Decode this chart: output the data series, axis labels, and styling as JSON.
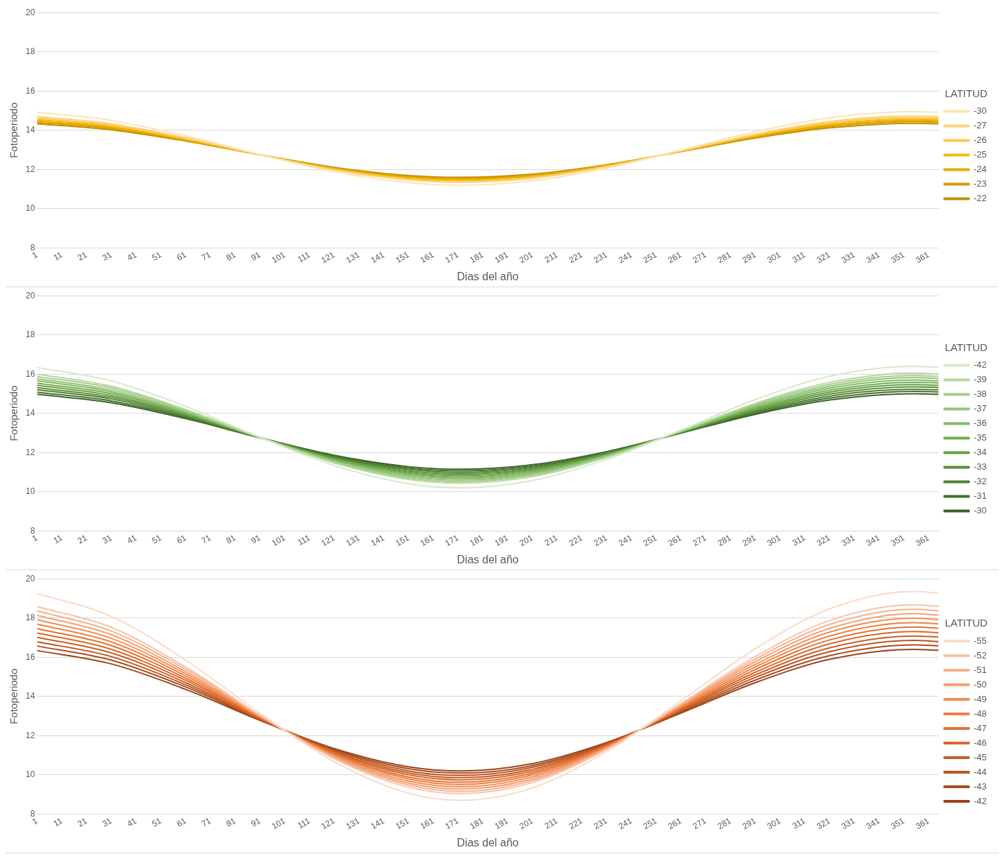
{
  "chart_data": [
    {
      "type": "line",
      "xlabel": "Dias del año",
      "ylabel": "Fotoperiodo",
      "legend_title": "LATITUD",
      "legend": "right",
      "grid": "y",
      "xlim": [
        1,
        365
      ],
      "ylim": [
        8,
        20
      ],
      "yticks": [
        8,
        10,
        12,
        14,
        16,
        18,
        20
      ],
      "xticks": [
        1,
        11,
        21,
        31,
        41,
        51,
        61,
        71,
        81,
        91,
        101,
        111,
        121,
        131,
        141,
        151,
        161,
        171,
        181,
        191,
        201,
        211,
        221,
        231,
        241,
        251,
        261,
        271,
        281,
        291,
        301,
        311,
        321,
        331,
        341,
        351,
        361
      ],
      "x": [
        1,
        31,
        61,
        91,
        121,
        151,
        172,
        201,
        231,
        261,
        291,
        321,
        355,
        365
      ],
      "series": [
        {
          "name": "-30",
          "color": "#fce4b0",
          "values": [
            14.92,
            14.5,
            13.72,
            12.76,
            11.89,
            11.33,
            11.2,
            11.42,
            12.07,
            12.99,
            13.92,
            14.64,
            14.95,
            14.92
          ]
        },
        {
          "name": "-27",
          "color": "#fcd27a",
          "values": [
            14.7,
            14.33,
            13.62,
            12.76,
            11.97,
            11.47,
            11.35,
            11.55,
            12.14,
            12.96,
            13.8,
            14.45,
            14.73,
            14.71
          ]
        },
        {
          "name": "-26",
          "color": "#fcc84f",
          "values": [
            14.62,
            14.26,
            13.58,
            12.75,
            12.0,
            11.51,
            11.4,
            11.59,
            12.16,
            12.95,
            13.76,
            14.38,
            14.65,
            14.63
          ]
        },
        {
          "name": "-25",
          "color": "#f6b800",
          "values": [
            14.54,
            14.2,
            13.54,
            12.75,
            12.02,
            11.56,
            11.45,
            11.63,
            12.18,
            12.94,
            13.72,
            14.31,
            14.57,
            14.55
          ]
        },
        {
          "name": "-24",
          "color": "#e8aa00",
          "values": [
            14.47,
            14.14,
            13.51,
            12.75,
            12.05,
            11.6,
            11.5,
            11.68,
            12.2,
            12.93,
            13.68,
            14.25,
            14.5,
            14.48
          ]
        },
        {
          "name": "-23",
          "color": "#d59c00",
          "values": [
            14.4,
            14.09,
            13.48,
            12.75,
            12.08,
            11.65,
            11.55,
            11.72,
            12.22,
            12.92,
            13.64,
            14.19,
            14.43,
            14.41
          ]
        },
        {
          "name": "-22",
          "color": "#bf9000",
          "values": [
            14.33,
            14.02,
            13.45,
            12.75,
            12.11,
            11.69,
            11.6,
            11.76,
            12.24,
            12.91,
            13.6,
            14.12,
            14.35,
            14.33
          ]
        }
      ]
    },
    {
      "type": "line",
      "xlabel": "Dias del año",
      "ylabel": "Fotoperiodo",
      "legend_title": "LATITUD",
      "legend": "right",
      "grid": "y",
      "xlim": [
        1,
        365
      ],
      "ylim": [
        8,
        20
      ],
      "yticks": [
        8,
        10,
        12,
        14,
        16,
        18,
        20
      ],
      "xticks": [
        1,
        11,
        21,
        31,
        41,
        51,
        61,
        71,
        81,
        91,
        101,
        111,
        121,
        131,
        141,
        151,
        161,
        171,
        181,
        191,
        201,
        211,
        221,
        231,
        241,
        251,
        261,
        271,
        281,
        291,
        301,
        311,
        321,
        331,
        341,
        351,
        361
      ],
      "x": [
        1,
        31,
        61,
        91,
        121,
        151,
        172,
        201,
        231,
        261,
        291,
        321,
        355,
        365
      ],
      "series": [
        {
          "name": "-42",
          "color": "#d5e8c8",
          "values": [
            16.34,
            15.66,
            14.36,
            12.78,
            11.34,
            10.41,
            10.2,
            10.57,
            11.65,
            13.15,
            14.7,
            15.89,
            16.4,
            16.35
          ]
        },
        {
          "name": "-39",
          "color": "#b6d7a0",
          "values": [
            16.0,
            15.38,
            14.2,
            12.78,
            11.47,
            10.63,
            10.44,
            10.77,
            11.75,
            13.11,
            14.51,
            15.58,
            16.05,
            16.01
          ]
        },
        {
          "name": "-38",
          "color": "#a6ce8c",
          "values": [
            15.88,
            15.29,
            14.15,
            12.77,
            11.51,
            10.7,
            10.52,
            10.84,
            11.78,
            13.1,
            14.45,
            15.48,
            15.93,
            15.89
          ]
        },
        {
          "name": "-37",
          "color": "#94c477",
          "values": [
            15.77,
            15.19,
            14.1,
            12.77,
            11.56,
            10.77,
            10.6,
            10.9,
            11.81,
            13.08,
            14.39,
            15.38,
            15.82,
            15.78
          ]
        },
        {
          "name": "-36",
          "color": "#82ba62",
          "values": [
            15.66,
            15.1,
            14.05,
            12.77,
            11.6,
            10.85,
            10.68,
            10.97,
            11.85,
            13.07,
            14.32,
            15.28,
            15.7,
            15.66
          ]
        },
        {
          "name": "-35",
          "color": "#72ae4f",
          "values": [
            15.54,
            15.01,
            14.0,
            12.77,
            11.64,
            10.92,
            10.75,
            11.04,
            11.88,
            13.06,
            14.26,
            15.18,
            15.58,
            15.55
          ]
        },
        {
          "name": "-34",
          "color": "#659f42",
          "values": [
            15.43,
            14.91,
            13.94,
            12.76,
            11.69,
            10.99,
            10.83,
            11.11,
            11.91,
            13.04,
            14.2,
            15.08,
            15.47,
            15.43
          ]
        },
        {
          "name": "-33",
          "color": "#5a8f3a",
          "values": [
            15.31,
            14.82,
            13.89,
            12.76,
            11.73,
            11.06,
            10.91,
            11.17,
            11.95,
            13.03,
            14.13,
            14.98,
            15.35,
            15.32
          ]
        },
        {
          "name": "-32",
          "color": "#4f8033",
          "values": [
            15.2,
            14.73,
            13.84,
            12.76,
            11.77,
            11.14,
            10.99,
            11.24,
            11.98,
            13.01,
            14.07,
            14.88,
            15.23,
            15.2
          ]
        },
        {
          "name": "-31",
          "color": "#45712c",
          "values": [
            15.08,
            14.63,
            13.79,
            12.76,
            11.82,
            11.21,
            11.07,
            11.31,
            12.01,
            13.0,
            14.01,
            14.78,
            15.12,
            15.09
          ]
        },
        {
          "name": "-30",
          "color": "#3b6326",
          "values": [
            14.97,
            14.54,
            13.73,
            12.75,
            11.86,
            11.28,
            11.15,
            11.38,
            12.05,
            12.99,
            13.95,
            14.68,
            15.0,
            14.97
          ]
        }
      ]
    },
    {
      "type": "line",
      "xlabel": "Dias del año",
      "ylabel": "Fotoperiodo",
      "legend_title": "LATITUD",
      "legend": "right",
      "grid": "y",
      "xlim": [
        1,
        365
      ],
      "ylim": [
        8,
        20
      ],
      "yticks": [
        8,
        10,
        12,
        14,
        16,
        18,
        20
      ],
      "xticks": [
        1,
        11,
        21,
        31,
        41,
        51,
        61,
        71,
        81,
        91,
        101,
        111,
        121,
        131,
        141,
        151,
        161,
        171,
        181,
        191,
        201,
        211,
        221,
        231,
        241,
        251,
        261,
        271,
        281,
        291,
        301,
        311,
        321,
        331,
        341,
        351,
        361
      ],
      "x": [
        1,
        31,
        61,
        91,
        121,
        151,
        172,
        201,
        231,
        261,
        291,
        321,
        355,
        365
      ],
      "series": [
        {
          "name": "-55",
          "color": "#fbd9c8",
          "values": [
            19.25,
            18.08,
            15.85,
            13.14,
            10.66,
            9.06,
            8.7,
            9.33,
            11.18,
            13.78,
            16.43,
            18.47,
            19.35,
            19.27
          ]
        },
        {
          "name": "-52",
          "color": "#f8c2a8",
          "values": [
            18.58,
            17.52,
            15.5,
            13.05,
            10.82,
            9.37,
            9.05,
            9.61,
            11.29,
            13.63,
            16.03,
            17.87,
            18.67,
            18.6
          ]
        },
        {
          "name": "-51",
          "color": "#f6b08e",
          "values": [
            18.36,
            17.33,
            15.39,
            13.03,
            10.87,
            9.48,
            9.16,
            9.71,
            11.32,
            13.58,
            15.9,
            17.67,
            18.44,
            18.37
          ]
        },
        {
          "name": "-50",
          "color": "#f4a073",
          "values": [
            18.14,
            17.15,
            15.27,
            13.0,
            10.92,
            9.58,
            9.28,
            9.8,
            11.36,
            13.54,
            15.77,
            17.47,
            18.22,
            18.15
          ]
        },
        {
          "name": "-49",
          "color": "#f28f58",
          "values": [
            17.91,
            16.96,
            15.16,
            12.97,
            10.97,
            9.68,
            9.39,
            9.9,
            11.4,
            13.49,
            15.63,
            17.28,
            17.99,
            17.92
          ]
        },
        {
          "name": "-48",
          "color": "#ef7f3f",
          "values": [
            17.69,
            16.78,
            15.05,
            12.95,
            11.03,
            9.79,
            9.51,
            10.0,
            11.43,
            13.44,
            15.5,
            17.08,
            17.76,
            17.7
          ]
        },
        {
          "name": "-47",
          "color": "#e47131",
          "values": [
            17.46,
            16.59,
            14.93,
            12.92,
            11.08,
            9.89,
            9.62,
            10.09,
            11.47,
            13.39,
            15.37,
            16.88,
            17.54,
            17.48
          ]
        },
        {
          "name": "-46",
          "color": "#d8672b",
          "values": [
            17.24,
            16.4,
            14.82,
            12.89,
            11.13,
            10.0,
            9.74,
            10.19,
            11.5,
            13.35,
            15.23,
            16.68,
            17.31,
            17.25
          ]
        },
        {
          "name": "-45",
          "color": "#c95e26",
          "values": [
            17.02,
            16.22,
            14.7,
            12.86,
            11.18,
            10.1,
            9.85,
            10.28,
            11.54,
            13.3,
            15.1,
            16.48,
            17.08,
            17.03
          ]
        },
        {
          "name": "-44",
          "color": "#b95422",
          "values": [
            16.79,
            16.03,
            14.59,
            12.84,
            11.24,
            10.2,
            9.97,
            10.38,
            11.57,
            13.25,
            14.97,
            16.28,
            16.86,
            16.8
          ]
        },
        {
          "name": "-43",
          "color": "#a94b1e",
          "values": [
            16.57,
            15.85,
            14.48,
            12.81,
            11.29,
            10.31,
            10.09,
            10.47,
            11.61,
            13.2,
            14.83,
            16.08,
            16.63,
            16.58
          ]
        },
        {
          "name": "-42",
          "color": "#994319",
          "values": [
            16.34,
            15.66,
            14.36,
            12.78,
            11.34,
            10.41,
            10.2,
            10.57,
            11.65,
            13.15,
            14.7,
            15.89,
            16.4,
            16.35
          ]
        }
      ]
    }
  ]
}
